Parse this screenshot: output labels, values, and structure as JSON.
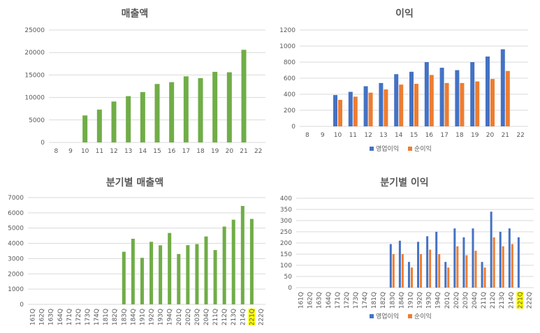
{
  "colors": {
    "green": "#70AD47",
    "blue": "#4472C4",
    "orange": "#ED7D31",
    "grid": "#D9D9D9",
    "text": "#595959",
    "highlight": "#FFFF00"
  },
  "chart_data": [
    {
      "id": "annual-revenue",
      "type": "bar",
      "title": "매출액",
      "categories": [
        "8",
        "9",
        "10",
        "11",
        "12",
        "13",
        "14",
        "15",
        "16",
        "17",
        "18",
        "19",
        "20",
        "21",
        "22"
      ],
      "series": [
        {
          "name": "매출액",
          "color": "green",
          "values": [
            0,
            0,
            6000,
            7300,
            9100,
            10300,
            11200,
            13000,
            13400,
            14700,
            14300,
            15700,
            15600,
            20600,
            0
          ]
        }
      ],
      "ylim": [
        0,
        25000
      ],
      "yticks": [
        0,
        5000,
        10000,
        15000,
        20000,
        25000
      ],
      "grid": true
    },
    {
      "id": "annual-profit",
      "type": "bar",
      "title": "이익",
      "categories": [
        "8",
        "9",
        "10",
        "11",
        "12",
        "13",
        "14",
        "15",
        "16",
        "17",
        "18",
        "19",
        "20",
        "21",
        "22"
      ],
      "series": [
        {
          "name": "영업이익",
          "color": "blue",
          "values": [
            0,
            0,
            390,
            430,
            500,
            540,
            650,
            680,
            800,
            730,
            700,
            800,
            870,
            960,
            0
          ]
        },
        {
          "name": "순이익",
          "color": "orange",
          "values": [
            0,
            0,
            330,
            370,
            420,
            460,
            520,
            530,
            640,
            540,
            540,
            560,
            590,
            690,
            0
          ]
        }
      ],
      "ylim": [
        0,
        1200
      ],
      "yticks": [
        0,
        200,
        400,
        600,
        800,
        1000,
        1200
      ],
      "legend": "bottom",
      "grid": true
    },
    {
      "id": "quarterly-revenue",
      "type": "bar",
      "title": "분기별 매출액",
      "categories": [
        "161Q",
        "162Q",
        "163Q",
        "164Q",
        "171Q",
        "172Q",
        "173Q",
        "174Q",
        "181Q",
        "182Q",
        "183Q",
        "184Q",
        "191Q",
        "192Q",
        "193Q",
        "194Q",
        "201Q",
        "202Q",
        "203Q",
        "204Q",
        "211Q",
        "212Q",
        "213Q",
        "214Q",
        "221Q",
        "222Q"
      ],
      "highlight": "221Q",
      "series": [
        {
          "name": "분기별 매출액",
          "color": "green",
          "values": [
            0,
            0,
            0,
            0,
            0,
            0,
            0,
            0,
            0,
            0,
            3450,
            4300,
            3050,
            4100,
            3870,
            4680,
            3300,
            3880,
            3950,
            4450,
            3560,
            5100,
            5550,
            6450,
            5600,
            0
          ]
        }
      ],
      "ylim": [
        0,
        7000
      ],
      "yticks": [
        0,
        1000,
        2000,
        3000,
        4000,
        5000,
        6000,
        7000
      ],
      "grid": true
    },
    {
      "id": "quarterly-profit",
      "type": "bar",
      "title": "분기별 이익",
      "categories": [
        "161Q",
        "162Q",
        "163Q",
        "164Q",
        "171Q",
        "172Q",
        "173Q",
        "174Q",
        "181Q",
        "182Q",
        "183Q",
        "184Q",
        "191Q",
        "192Q",
        "193Q",
        "194Q",
        "201Q",
        "202Q",
        "203Q",
        "204Q",
        "211Q",
        "212Q",
        "213Q",
        "214Q",
        "221Q",
        "222Q"
      ],
      "highlight": "221Q",
      "series": [
        {
          "name": "영업이익",
          "color": "blue",
          "values": [
            0,
            0,
            0,
            0,
            0,
            0,
            0,
            0,
            0,
            0,
            195,
            210,
            115,
            205,
            230,
            250,
            115,
            265,
            225,
            265,
            115,
            340,
            250,
            265,
            225,
            0
          ]
        },
        {
          "name": "순이익",
          "color": "orange",
          "values": [
            0,
            0,
            0,
            0,
            0,
            0,
            0,
            0,
            0,
            0,
            150,
            150,
            90,
            150,
            170,
            150,
            90,
            185,
            145,
            165,
            90,
            225,
            185,
            195,
            0,
            0
          ]
        }
      ],
      "ylim": [
        0,
        400
      ],
      "yticks": [
        0,
        50,
        100,
        150,
        200,
        250,
        300,
        350,
        400
      ],
      "legend": "bottom",
      "grid": true
    }
  ]
}
